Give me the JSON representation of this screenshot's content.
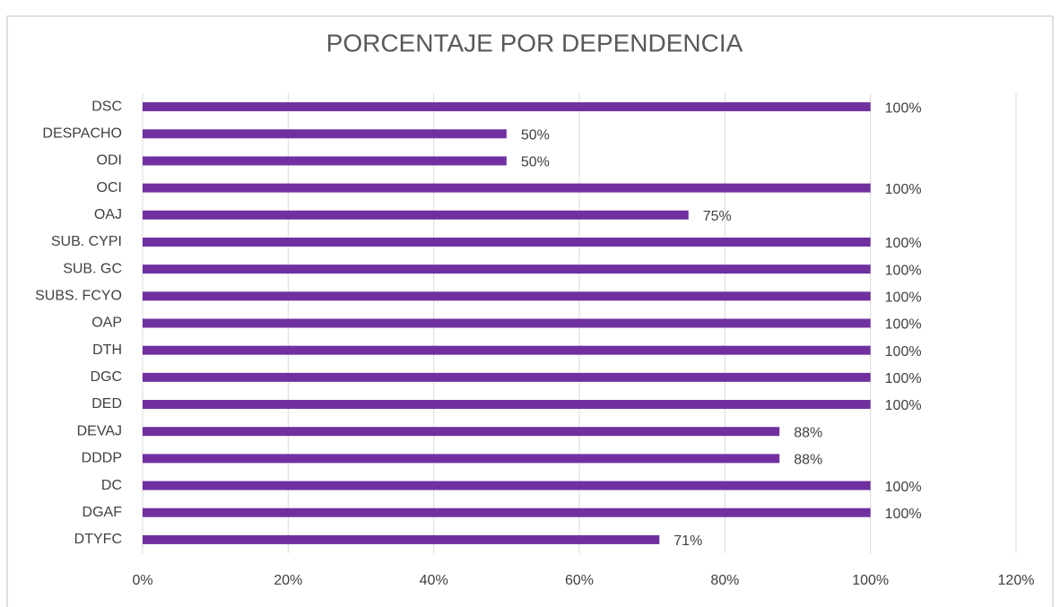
{
  "chart_data": {
    "type": "barh",
    "title": "PORCENTAJE POR DEPENDENCIA",
    "categories": [
      "DSC",
      "DESPACHO",
      "ODI",
      "OCI",
      "OAJ",
      "SUB. CYPI",
      "SUB. GC",
      "SUBS. FCYO",
      "OAP",
      "DTH",
      "DGC",
      "DED",
      "DEVAJ",
      "DDDP",
      "DC",
      "DGAF",
      "DTYFC"
    ],
    "values": [
      100,
      50,
      50,
      100,
      75,
      100,
      100,
      100,
      100,
      100,
      100,
      100,
      87.5,
      87.5,
      100,
      100,
      71
    ],
    "value_labels": [
      "100%",
      "50%",
      "50%",
      "100%",
      "75%",
      "100%",
      "100%",
      "100%",
      "100%",
      "100%",
      "100%",
      "100%",
      "88%",
      "88%",
      "100%",
      "100%",
      "71%"
    ],
    "color": "#7030a0",
    "xlim": [
      0,
      120
    ],
    "xticks": [
      {
        "value": 0,
        "label": "0%"
      },
      {
        "value": 20,
        "label": "20%"
      },
      {
        "value": 40,
        "label": "40%"
      },
      {
        "value": 60,
        "label": "60%"
      },
      {
        "value": 80,
        "label": "80%"
      },
      {
        "value": 100,
        "label": "100%"
      },
      {
        "value": 120,
        "label": "120%"
      }
    ],
    "grid": true
  }
}
